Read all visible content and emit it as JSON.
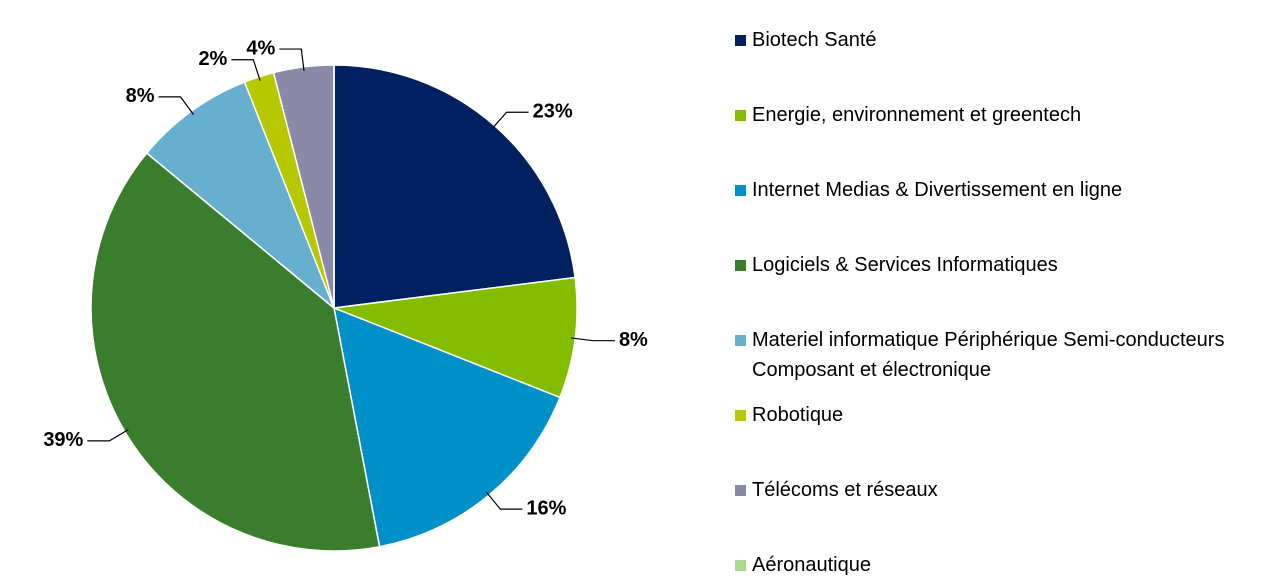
{
  "chart_data": {
    "type": "pie",
    "categories": [
      "Biotech Santé",
      "Energie, environnement et greentech",
      "Internet Medias & Divertissement en ligne",
      "Logiciels & Services Informatiques",
      "Materiel informatique Périphérique Semi-conducteurs Composant et électronique",
      "Robotique",
      "Télécoms et réseaux",
      "Aéronautique"
    ],
    "values": [
      23,
      8,
      16,
      39,
      8,
      2,
      4,
      0
    ],
    "value_labels": [
      "23%",
      "8%",
      "16%",
      "39%",
      "8%",
      "2%",
      "4%",
      null
    ],
    "colors": [
      "#002060",
      "#84bd00",
      "#0090c8",
      "#3a7d2c",
      "#67afce",
      "#b8c800",
      "#8a8aa8",
      "#a9d98b"
    ],
    "legend": "right"
  }
}
